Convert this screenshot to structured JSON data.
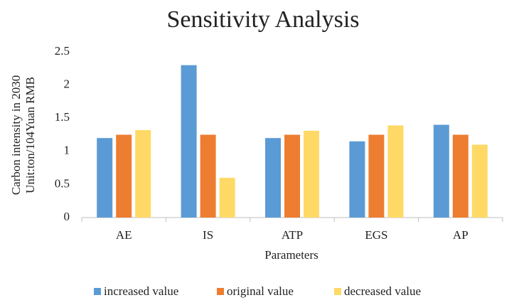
{
  "chart_data": {
    "type": "bar",
    "title": "Sensitivity Analysis",
    "xlabel": "Parameters",
    "ylabel": [
      "Carbon intensity in 2030",
      "Unit:ton/104Yuan RMB"
    ],
    "categories": [
      "AE",
      "IS",
      "ATP",
      "EGS",
      "AP"
    ],
    "series": [
      {
        "name": "increased value",
        "color": "#5b9bd5",
        "values": [
          1.2,
          2.3,
          1.2,
          1.15,
          1.4
        ]
      },
      {
        "name": "original value",
        "color": "#ed7d31",
        "values": [
          1.25,
          1.25,
          1.25,
          1.25,
          1.25
        ]
      },
      {
        "name": "decreased value",
        "color": "#ffd966",
        "values": [
          1.32,
          0.6,
          1.31,
          1.39,
          1.1
        ]
      }
    ],
    "ylim": [
      0,
      2.5
    ],
    "yticks": [
      0,
      0.5,
      1,
      1.5,
      2,
      2.5
    ],
    "grid": false,
    "legend": "bottom"
  }
}
